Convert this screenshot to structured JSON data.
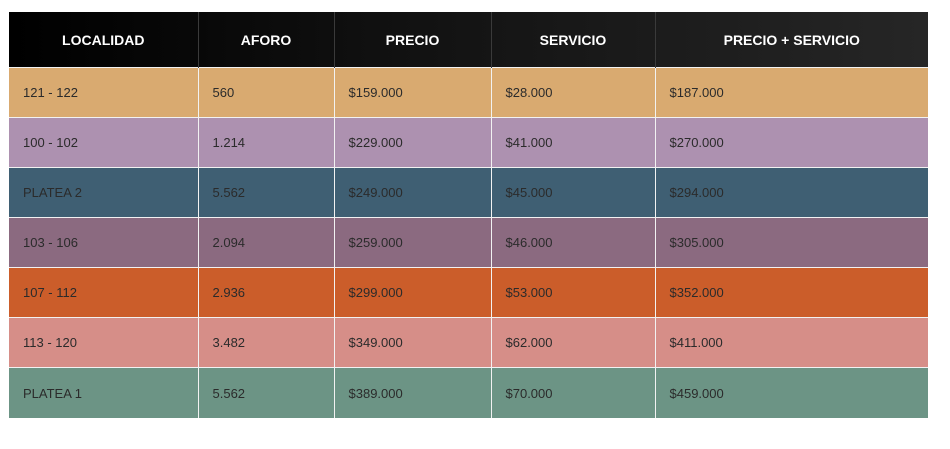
{
  "table": {
    "headers": [
      "LOCALIDAD",
      "AFORO",
      "PRECIO",
      "SERVICIO",
      "PRECIO + SERVICIO"
    ],
    "rows": [
      [
        "121 - 122",
        "560",
        "$159.000",
        "$28.000",
        "$187.000"
      ],
      [
        "100 - 102",
        "1.214",
        "$229.000",
        "$41.000",
        "$270.000"
      ],
      [
        "PLATEA 2",
        "5.562",
        "$249.000",
        "$45.000",
        "$294.000"
      ],
      [
        "103 - 106",
        "2.094",
        "$259.000",
        "$46.000",
        "$305.000"
      ],
      [
        "107 - 112",
        "2.936",
        "$299.000",
        "$53.000",
        "$352.000"
      ],
      [
        "113 - 120",
        "3.482",
        "$349.000",
        "$62.000",
        "$411.000"
      ],
      [
        "PLATEA 1",
        "5.562",
        "$389.000",
        "$70.000",
        "$459.000"
      ]
    ],
    "row_colors": [
      "#d9aa70",
      "#ad91b0",
      "#3f5f73",
      "#8b6a80",
      "#cb5d2a",
      "#d68e88",
      "#6c9485"
    ],
    "header_color": "#0b0b0b"
  }
}
